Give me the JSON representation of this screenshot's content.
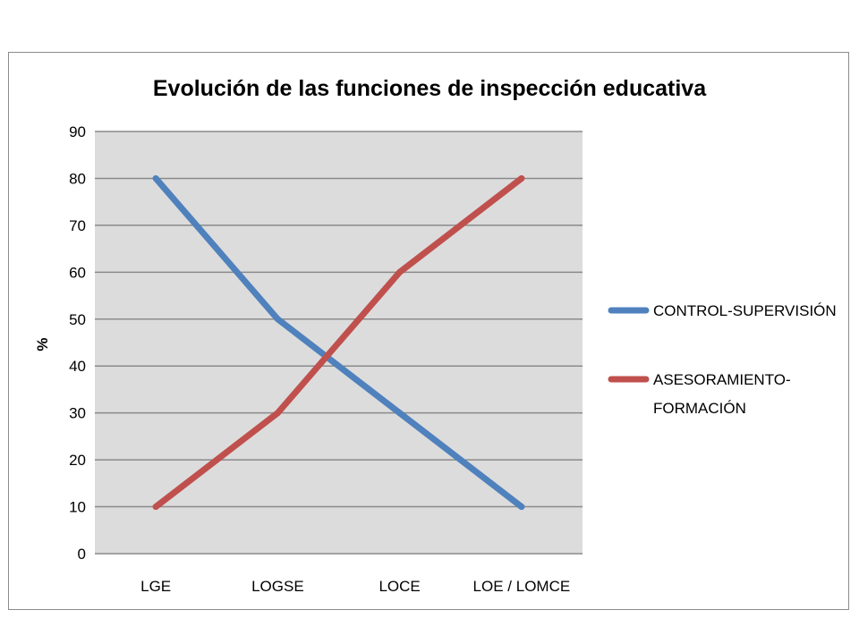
{
  "chart_data": {
    "type": "line",
    "title": "Evolución de las funciones de inspección educativa",
    "xlabel": "",
    "ylabel": "%",
    "categories": [
      "LGE",
      "LOGSE",
      "LOCE",
      "LOE / LOMCE"
    ],
    "ylim": [
      0,
      90
    ],
    "yticks": [
      0,
      10,
      20,
      30,
      40,
      50,
      60,
      70,
      80,
      90
    ],
    "grid": true,
    "legend_position": "right",
    "series": [
      {
        "name": "CONTROL-SUPERVISIÓN",
        "legend_lines": [
          "CONTROL-SUPERVISIÓN"
        ],
        "color": "#4f81bd",
        "values": [
          80,
          50,
          30,
          10
        ]
      },
      {
        "name": "ASESORAMIENTO-FORMACIÓN",
        "legend_lines": [
          "ASESORAMIENTO-",
          "FORMACIÓN"
        ],
        "color": "#c0504d",
        "values": [
          10,
          30,
          60,
          80
        ]
      }
    ],
    "plot_background": "#dcdcdc",
    "grid_color": "#8a8a8a"
  }
}
